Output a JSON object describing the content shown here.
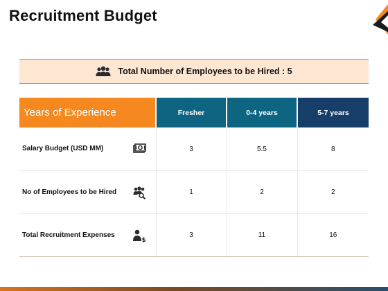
{
  "slide": {
    "title": "Recruitment Budget"
  },
  "banner": {
    "text": "Total Number of Employees to be Hired : 5",
    "icon": "people-group-icon"
  },
  "table": {
    "header_label": "Years of Experience",
    "columns": [
      "Fresher",
      "0-4 years",
      "5-7 years"
    ],
    "rows": [
      {
        "label": "Salary Budget (USD MM)",
        "icon": "money-icon",
        "values": [
          "3",
          "5.5",
          "8"
        ]
      },
      {
        "label": "No of Employees to be Hired",
        "icon": "team-search-icon",
        "values": [
          "1",
          "2",
          "2"
        ]
      },
      {
        "label": "Total Recruitment Expenses",
        "icon": "person-dollar-icon",
        "values": [
          "3",
          "11",
          "16"
        ]
      }
    ]
  },
  "colors": {
    "accent_orange": "#f5891f",
    "header_teal": "#0e6582",
    "header_navy": "#173e68",
    "banner_fill": "#fde6d2"
  }
}
